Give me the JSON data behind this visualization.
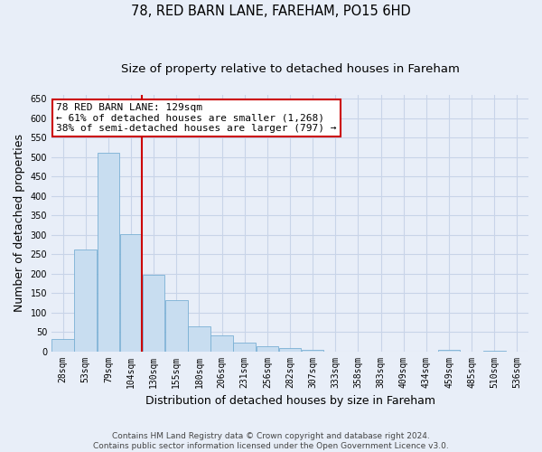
{
  "title": "78, RED BARN LANE, FAREHAM, PO15 6HD",
  "subtitle": "Size of property relative to detached houses in Fareham",
  "xlabel": "Distribution of detached houses by size in Fareham",
  "ylabel": "Number of detached properties",
  "bin_labels": [
    "28sqm",
    "53sqm",
    "79sqm",
    "104sqm",
    "130sqm",
    "155sqm",
    "180sqm",
    "206sqm",
    "231sqm",
    "256sqm",
    "282sqm",
    "307sqm",
    "333sqm",
    "358sqm",
    "383sqm",
    "409sqm",
    "434sqm",
    "459sqm",
    "485sqm",
    "510sqm",
    "536sqm"
  ],
  "bar_values": [
    32,
    263,
    512,
    302,
    196,
    131,
    65,
    40,
    23,
    14,
    8,
    3,
    0,
    0,
    0,
    0,
    0,
    3,
    0,
    2,
    0
  ],
  "bar_color": "#c8ddf0",
  "bar_edge_color": "#7ab0d4",
  "highlight_index": 3,
  "highlight_color": "#cc0000",
  "annotation_text": "78 RED BARN LANE: 129sqm\n← 61% of detached houses are smaller (1,268)\n38% of semi-detached houses are larger (797) →",
  "annotation_box_color": "#ffffff",
  "annotation_box_edge": "#cc0000",
  "ylim": [
    0,
    660
  ],
  "yticks": [
    0,
    50,
    100,
    150,
    200,
    250,
    300,
    350,
    400,
    450,
    500,
    550,
    600,
    650
  ],
  "footer_text": "Contains HM Land Registry data © Crown copyright and database right 2024.\nContains public sector information licensed under the Open Government Licence v3.0.",
  "bg_color": "#e8eef8",
  "plot_bg_color": "#e8eef8",
  "grid_color": "#c8d4e8",
  "title_fontsize": 10.5,
  "subtitle_fontsize": 9.5,
  "axis_label_fontsize": 9,
  "tick_fontsize": 7,
  "footer_fontsize": 6.5,
  "annotation_fontsize": 8
}
